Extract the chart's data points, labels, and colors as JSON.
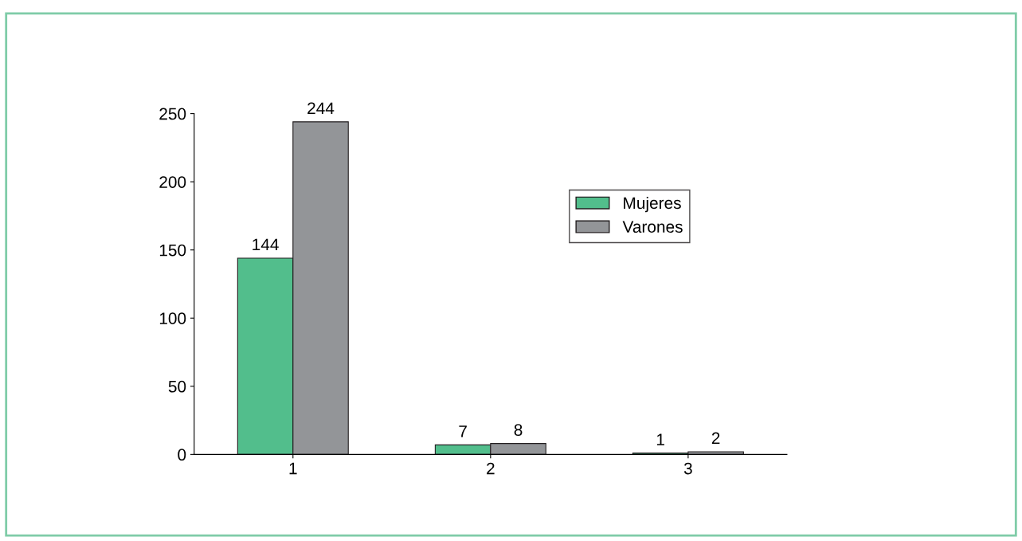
{
  "chart_data": {
    "type": "bar",
    "categories": [
      "1",
      "2",
      "3"
    ],
    "series": [
      {
        "name": "Mujeres",
        "color": "#52be8c",
        "values": [
          144,
          7,
          1
        ]
      },
      {
        "name": "Varones",
        "color": "#939598",
        "values": [
          244,
          8,
          2
        ]
      }
    ],
    "ylim": [
      0,
      250
    ],
    "yticks": [
      0,
      50,
      100,
      150,
      200,
      250
    ],
    "data_labels": true,
    "legend": "top right",
    "grid": false
  }
}
